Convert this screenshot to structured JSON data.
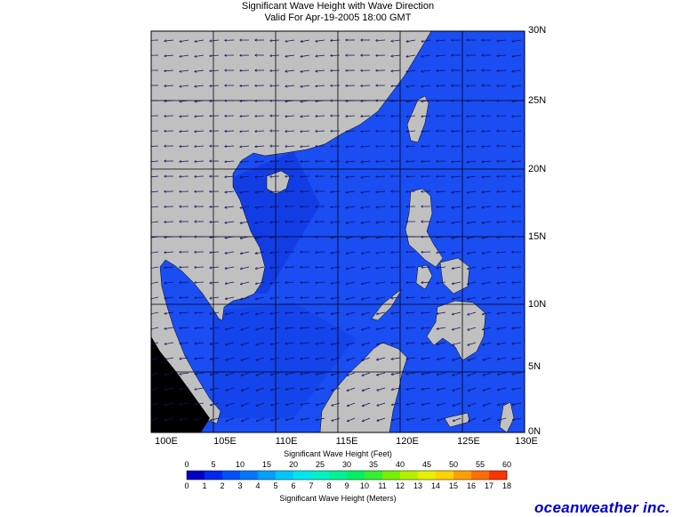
{
  "header": {
    "title": "Significant Wave Height with Wave Direction",
    "valid": "Valid For Apr-19-2005 18:00 GMT"
  },
  "map": {
    "lon_labels": [
      "100E",
      "105E",
      "110E",
      "115E",
      "120E",
      "125E",
      "130E"
    ],
    "lat_labels": [
      "30N",
      "25N",
      "20N",
      "15N",
      "10N",
      "5N",
      "0N"
    ],
    "colors": {
      "land": "#c0c0c0",
      "sea_main": "#1a4df2",
      "sea_shallow": "#0f36e0",
      "grid": "#000000"
    },
    "arrow_direction": "northeasterly to easterly flow, arrows pointing southwest / west"
  },
  "colorbar": {
    "feet_title": "Significant Wave Height (Feet)",
    "meters_title": "Significant Wave Height (Meters)",
    "feet_labels": [
      "0",
      "5",
      "10",
      "15",
      "20",
      "25",
      "30",
      "35",
      "40",
      "45",
      "50",
      "55",
      "60"
    ],
    "meter_labels": [
      "0",
      "1",
      "2",
      "3",
      "4",
      "5",
      "6",
      "7",
      "8",
      "9",
      "10",
      "11",
      "12",
      "13",
      "14",
      "15",
      "16",
      "17",
      "18"
    ],
    "colors": [
      "#0000c8",
      "#0028f0",
      "#0050ff",
      "#0078ff",
      "#00a0ff",
      "#00c8ff",
      "#00e6f0",
      "#00f0c8",
      "#00f096",
      "#00f064",
      "#32f032",
      "#78f000",
      "#b4f000",
      "#e6f000",
      "#ffd200",
      "#ffa000",
      "#ff6e00",
      "#ff3200"
    ]
  },
  "logo": {
    "text": "oceanweather inc."
  }
}
